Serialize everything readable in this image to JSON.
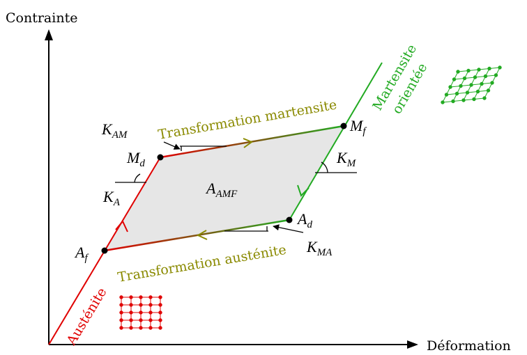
{
  "axes": {
    "y_label": "Contrainte",
    "x_label": "Déformation"
  },
  "phases": {
    "martensite": [
      "Martensite",
      "orientée"
    ],
    "austenite": "Austénite"
  },
  "transformations": {
    "martensite": "Transformation martensite",
    "austenite": "Transformation austénite"
  },
  "points": [
    {
      "main": "M",
      "sub": "d"
    },
    {
      "main": "M",
      "sub": "f"
    },
    {
      "main": "A",
      "sub": "f"
    },
    {
      "main": "A",
      "sub": "d"
    }
  ],
  "moduli": [
    {
      "main": "K",
      "sub": "AM"
    },
    {
      "main": "K",
      "sub": "A"
    },
    {
      "main": "K",
      "sub": "M"
    },
    {
      "main": "K",
      "sub": "MA"
    }
  ],
  "area": {
    "main": "A",
    "sub": "AMF"
  }
}
